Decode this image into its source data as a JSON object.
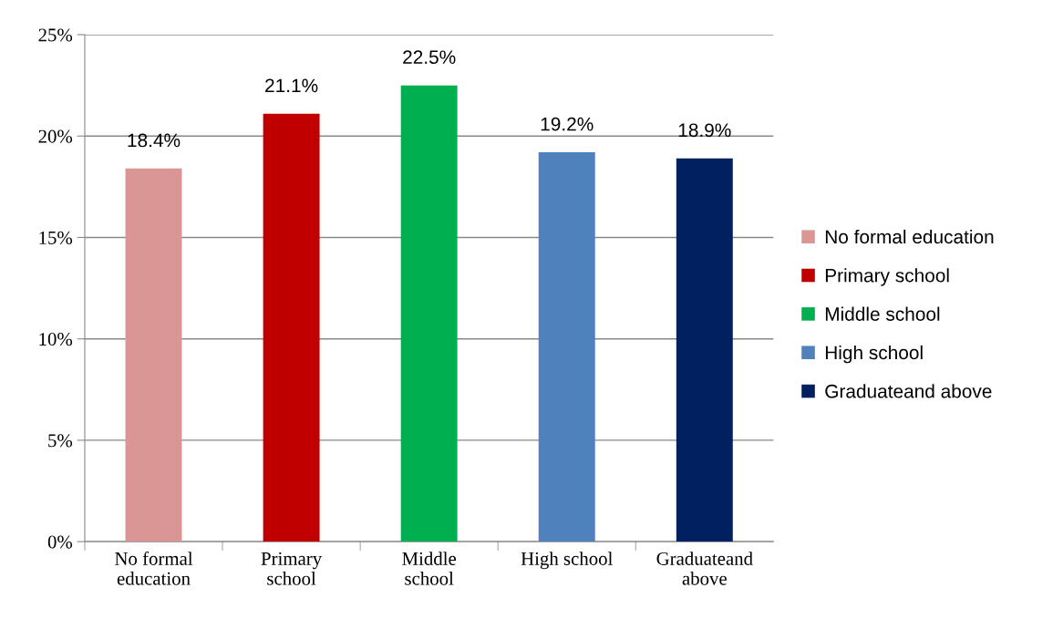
{
  "chart_data": {
    "type": "bar",
    "categories": [
      "No formal education",
      "Primary school",
      "Middle school",
      "High school",
      "Graduateand above"
    ],
    "series": [
      {
        "name": "No formal education",
        "color": "#d99694",
        "values": [
          18.4,
          null,
          null,
          null,
          null
        ],
        "value_labels": [
          "18.4%",
          null,
          null,
          null,
          null
        ]
      },
      {
        "name": "Primary school",
        "color": "#c00000",
        "values": [
          null,
          21.1,
          null,
          null,
          null
        ],
        "value_labels": [
          null,
          "21.1%",
          null,
          null,
          null
        ]
      },
      {
        "name": "Middle school",
        "color": "#00b050",
        "values": [
          null,
          null,
          22.5,
          null,
          null
        ],
        "value_labels": [
          null,
          null,
          "22.5%",
          null,
          null
        ]
      },
      {
        "name": "High school",
        "color": "#4f81bd",
        "values": [
          null,
          null,
          null,
          19.2,
          null
        ],
        "value_labels": [
          null,
          null,
          null,
          "19.2%",
          null
        ]
      },
      {
        "name": "Graduateand above",
        "color": "#002060",
        "values": [
          null,
          null,
          null,
          null,
          18.9
        ],
        "value_labels": [
          null,
          null,
          null,
          null,
          "18.9%"
        ]
      }
    ],
    "ylim": [
      0,
      25
    ],
    "yticks": [
      {
        "value": 0,
        "label": "0%"
      },
      {
        "value": 5,
        "label": "5%"
      },
      {
        "value": 10,
        "label": "10%"
      },
      {
        "value": 15,
        "label": "15%"
      },
      {
        "value": 20,
        "label": "20%"
      },
      {
        "value": 25,
        "label": "25%"
      }
    ],
    "grid": "y",
    "legend": "right"
  }
}
